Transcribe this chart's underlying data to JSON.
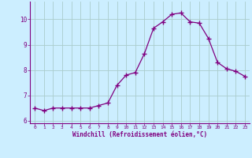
{
  "x": [
    0,
    1,
    2,
    3,
    4,
    5,
    6,
    7,
    8,
    9,
    10,
    11,
    12,
    13,
    14,
    15,
    16,
    17,
    18,
    19,
    20,
    21,
    22,
    23
  ],
  "y": [
    6.5,
    6.4,
    6.5,
    6.5,
    6.5,
    6.5,
    6.5,
    6.6,
    6.7,
    7.4,
    7.8,
    7.9,
    8.65,
    9.65,
    9.9,
    10.2,
    10.25,
    9.9,
    9.85,
    9.25,
    8.3,
    8.05,
    7.95,
    7.75
  ],
  "line_color": "#800080",
  "marker": "+",
  "marker_size": 4,
  "bg_color": "#cceeff",
  "plot_bg_color": "#cceeff",
  "grid_color": "#aacccc",
  "border_color": "#800080",
  "xlabel": "Windchill (Refroidissement éolien,°C)",
  "xlabel_color": "#800080",
  "tick_color": "#800080",
  "ylim": [
    5.9,
    10.7
  ],
  "xlim": [
    -0.5,
    23.5
  ],
  "yticks": [
    6,
    7,
    8,
    9,
    10
  ],
  "xticks": [
    0,
    1,
    2,
    3,
    4,
    5,
    6,
    7,
    8,
    9,
    10,
    11,
    12,
    13,
    14,
    15,
    16,
    17,
    18,
    19,
    20,
    21,
    22,
    23
  ]
}
